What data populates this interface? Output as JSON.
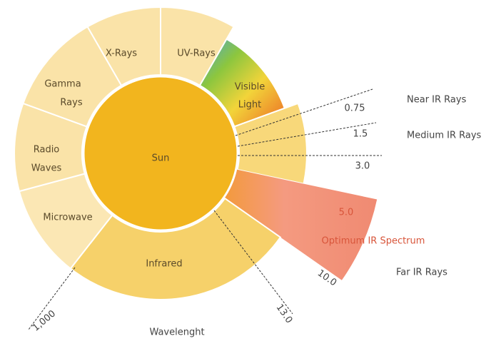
{
  "segments": [
    {
      "label_lines": [
        "X-Rays"
      ]
    },
    {
      "label_lines": [
        "UV-Rays"
      ]
    },
    {
      "label_lines": [
        "Visible",
        "Light"
      ]
    },
    {
      "label_lines": [
        "Gamma",
        "Rays"
      ]
    },
    {
      "label_lines": [
        "Radio",
        "Waves"
      ]
    },
    {
      "label_lines": [
        "Microwave"
      ]
    },
    {
      "label_lines": [
        "Infrared"
      ]
    }
  ],
  "center": "Sun",
  "wavelengths": [
    "0.75",
    "1.5",
    "3.0",
    "5.0",
    "10.0",
    "13.0",
    "1,000"
  ],
  "optimum": "Optimum IR Spectrum",
  "ir_bands": [
    "Near IR Rays",
    "Medium IR Rays",
    "Far IR Rays"
  ],
  "axis_label": "Wavelenght"
}
